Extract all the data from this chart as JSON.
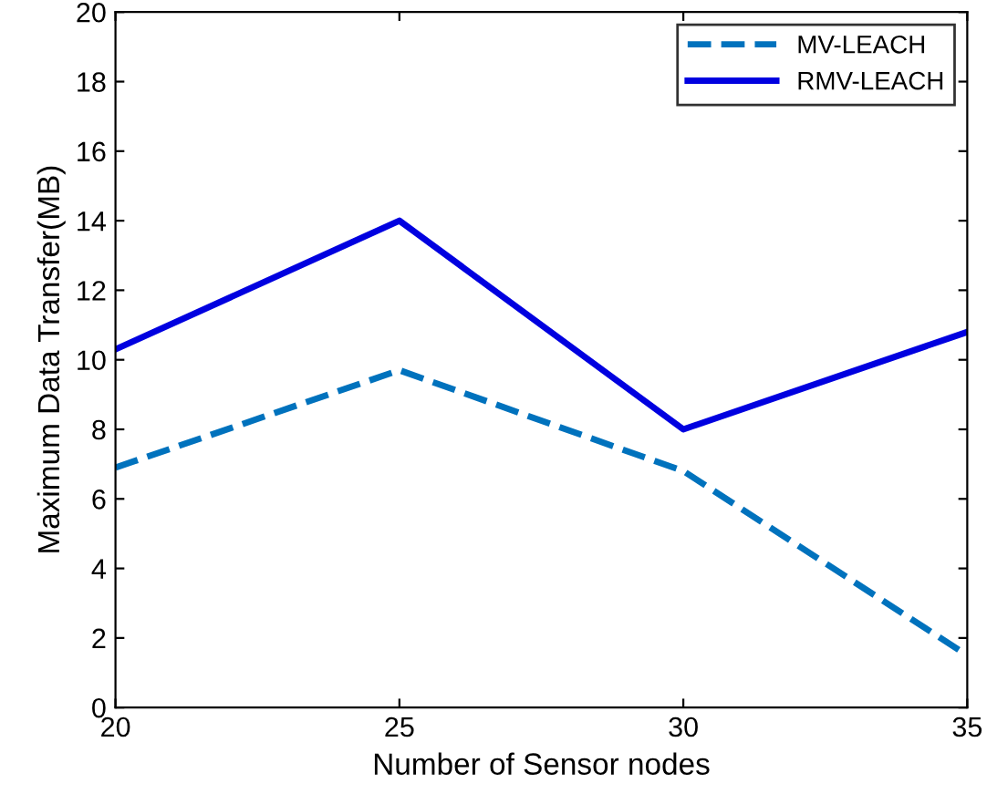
{
  "chart_data": {
    "type": "line",
    "xlabel": "Number of Sensor nodes",
    "ylabel": "Maximum Data Transfer(MB)",
    "x": [
      20,
      25,
      30,
      35
    ],
    "series": [
      {
        "name": "MV-LEACH",
        "color": "#0072bd",
        "line_style": "dashed",
        "values": [
          6.9,
          9.7,
          6.8,
          1.5
        ]
      },
      {
        "name": "RMV-LEACH",
        "color": "#0000e0",
        "line_style": "solid",
        "values": [
          10.3,
          14.0,
          8.0,
          10.8
        ]
      }
    ],
    "xlim": [
      20,
      35
    ],
    "xticks": [
      20,
      25,
      30,
      35
    ],
    "ylim": [
      0,
      20
    ],
    "yticks": [
      0,
      2,
      4,
      6,
      8,
      10,
      12,
      14,
      16,
      18,
      20
    ],
    "grid": false,
    "legend": "top right",
    "marker": "none"
  }
}
